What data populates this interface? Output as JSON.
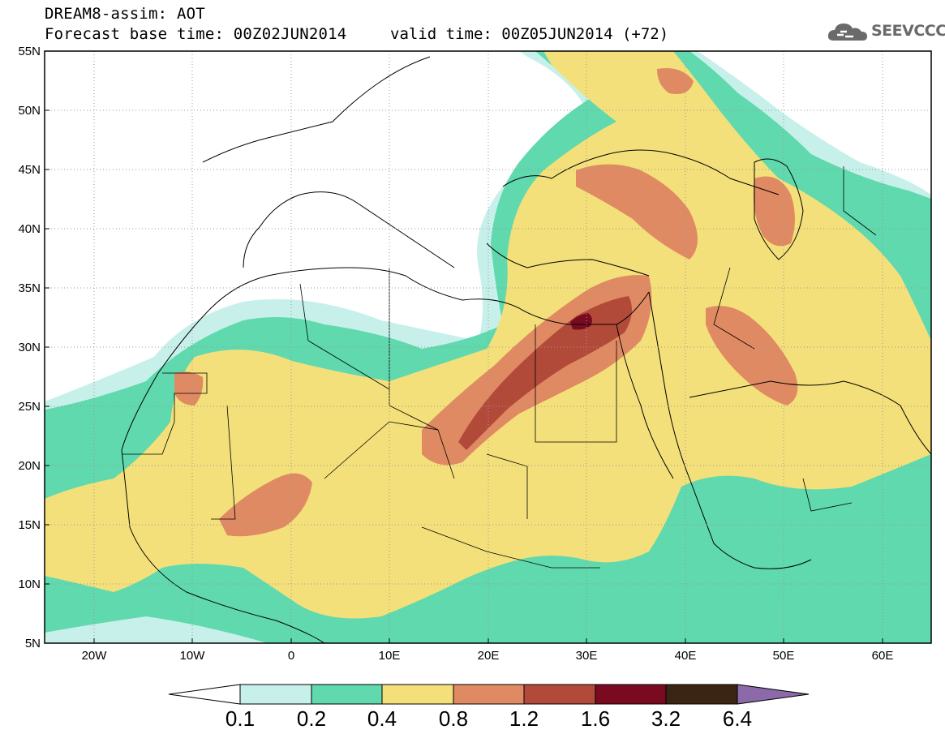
{
  "header": {
    "title_line1": "DREAM8-assim: AOT",
    "title_line2": "Forecast base time: 00Z02JUN2014",
    "valid_time": "valid time: 00Z05JUN2014 (+72)",
    "logo_text": "SEEVCCC"
  },
  "map": {
    "lat_labels": [
      "55N",
      "50N",
      "45N",
      "40N",
      "35N",
      "30N",
      "25N",
      "20N",
      "15N",
      "10N",
      "5N"
    ],
    "lon_labels": [
      "20W",
      "10W",
      "0",
      "10E",
      "20E",
      "30E",
      "40E",
      "50E",
      "60E"
    ]
  },
  "colorbar": {
    "labels": [
      "0.1",
      "0.2",
      "0.4",
      "0.8",
      "1.2",
      "1.6",
      "3.2",
      "6.4"
    ],
    "colors": [
      "#ffffff",
      "#c8f0ea",
      "#5fd9ad",
      "#f4e07a",
      "#e08a63",
      "#b24a3a",
      "#7a0a20",
      "#3a2515",
      "#8c69a8"
    ]
  },
  "colors": {
    "c01": "#c8f0ea",
    "c02": "#5fd9ad",
    "c04": "#f4e07a",
    "c08": "#e08a63",
    "c12": "#b24a3a",
    "c16": "#7a0a20"
  }
}
